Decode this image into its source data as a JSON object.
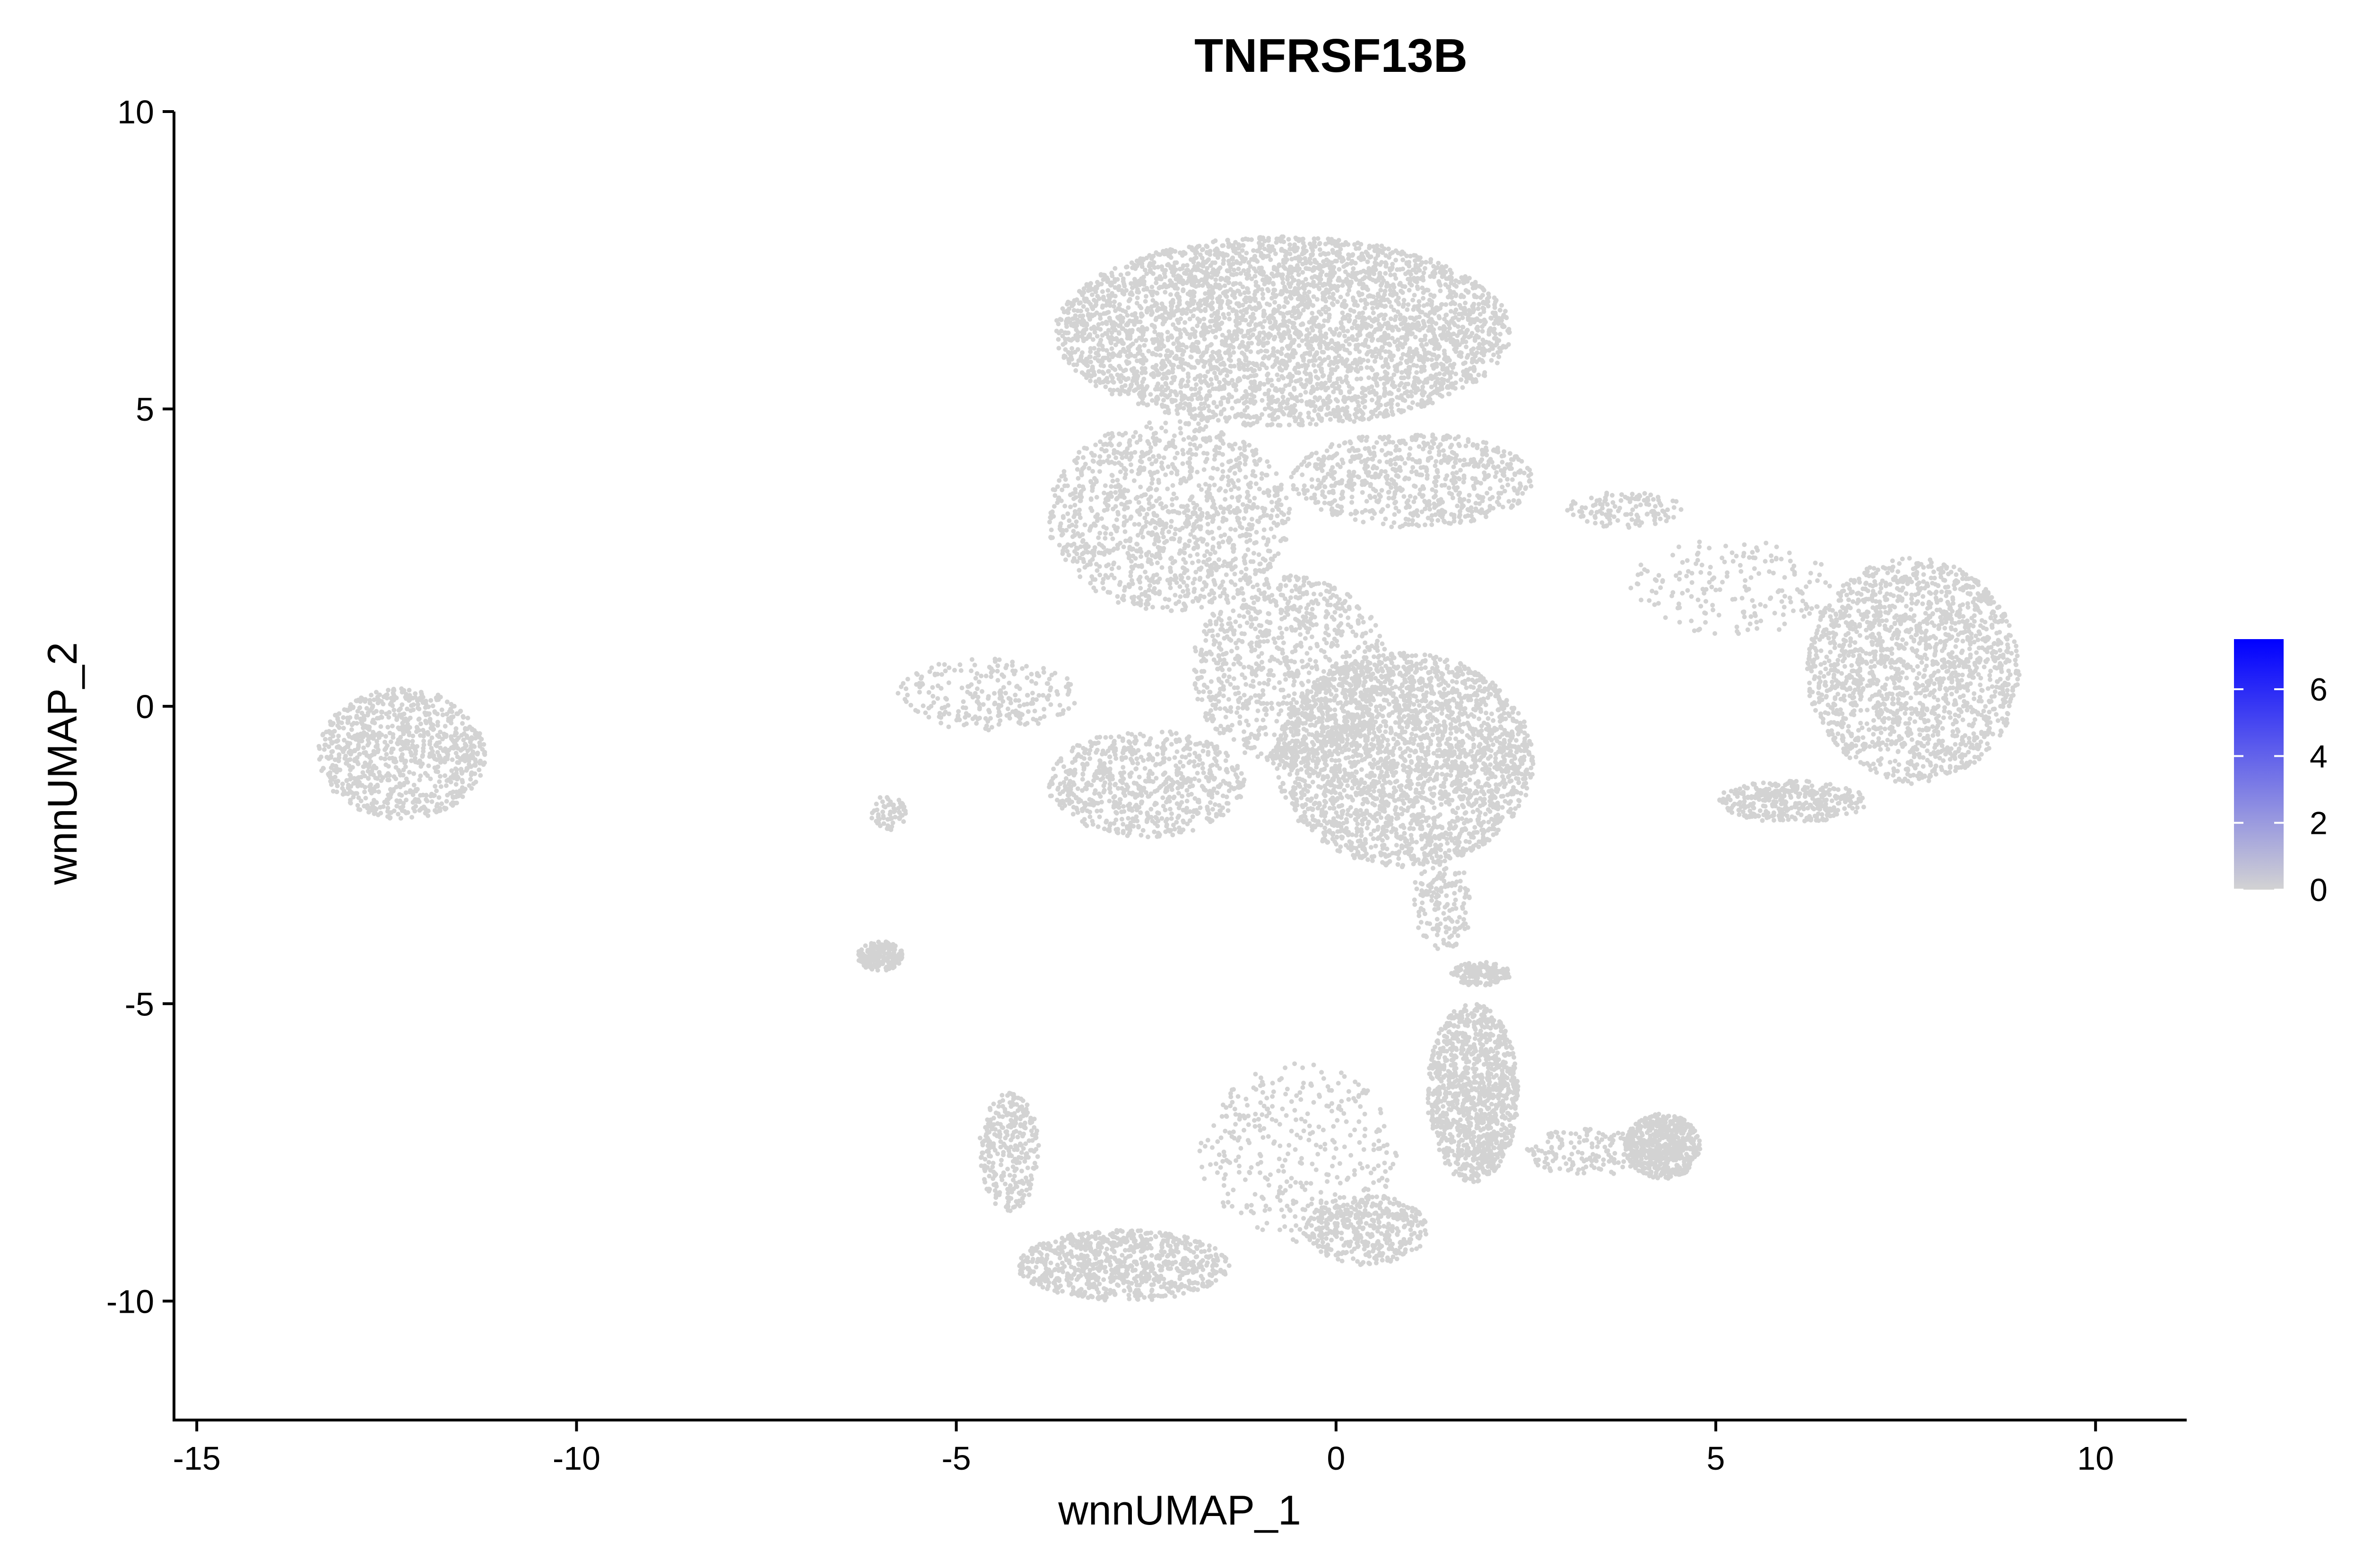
{
  "chart_data": {
    "type": "scatter",
    "title": "TNFRSF13B",
    "xlabel": "wnnUMAP_1",
    "ylabel": "wnnUMAP_2",
    "xlim": [
      -15.3,
      11.2
    ],
    "ylim": [
      -12,
      10
    ],
    "xticks": [
      -15,
      -10,
      -5,
      0,
      5,
      10
    ],
    "yticks": [
      -10,
      -5,
      0,
      5,
      10
    ],
    "xtick_labels": [
      "-15",
      "-10",
      "-5",
      "0",
      "5",
      "10"
    ],
    "ytick_labels": [
      "-10",
      "-5",
      "0",
      "5",
      "10"
    ],
    "grid": false,
    "legend_position": "right",
    "point_color": "#d3d3d3",
    "colorbar": {
      "low_color": "#d3d3d3",
      "high_color": "#0000ff",
      "min": 0,
      "max": 7.5,
      "ticks": [
        0,
        2,
        4,
        6
      ],
      "tick_labels": [
        "0",
        "2",
        "4",
        "6"
      ]
    },
    "clusters": [
      {
        "cx": -0.7,
        "cy": 6.3,
        "rx": 3.0,
        "ry": 1.6,
        "n": 3800
      },
      {
        "cx": -2.2,
        "cy": 3.2,
        "rx": 1.6,
        "ry": 1.6,
        "n": 1200
      },
      {
        "cx": 1.0,
        "cy": 3.8,
        "rx": 1.6,
        "ry": 0.8,
        "n": 700
      },
      {
        "cx": 0.9,
        "cy": -0.9,
        "rx": 1.7,
        "ry": 1.8,
        "n": 2600
      },
      {
        "cx": -0.6,
        "cy": 0.6,
        "rx": 1.3,
        "ry": 1.6,
        "n": 900
      },
      {
        "cx": -2.5,
        "cy": -1.3,
        "rx": 1.3,
        "ry": 0.9,
        "n": 700
      },
      {
        "cx": -4.6,
        "cy": 0.2,
        "rx": 1.2,
        "ry": 0.6,
        "n": 250
      },
      {
        "cx": 7.6,
        "cy": 0.6,
        "rx": 1.4,
        "ry": 1.9,
        "n": 1700
      },
      {
        "cx": 6.0,
        "cy": -1.6,
        "rx": 1.0,
        "ry": 0.35,
        "n": 350
      },
      {
        "cx": 5.2,
        "cy": 2.0,
        "rx": 1.4,
        "ry": 0.8,
        "n": 180
      },
      {
        "cx": -12.3,
        "cy": -0.8,
        "rx": 1.1,
        "ry": 1.1,
        "n": 900
      },
      {
        "cx": -6.0,
        "cy": -4.2,
        "rx": 0.3,
        "ry": 0.25,
        "n": 200
      },
      {
        "cx": -5.9,
        "cy": -1.8,
        "rx": 0.25,
        "ry": 0.3,
        "n": 60
      },
      {
        "cx": -4.3,
        "cy": -7.5,
        "rx": 0.4,
        "ry": 1.0,
        "n": 300
      },
      {
        "cx": -2.8,
        "cy": -9.4,
        "rx": 1.4,
        "ry": 0.6,
        "n": 800
      },
      {
        "cx": 1.8,
        "cy": -6.5,
        "rx": 0.6,
        "ry": 1.5,
        "n": 1100
      },
      {
        "cx": 0.4,
        "cy": -8.8,
        "rx": 0.8,
        "ry": 0.6,
        "n": 400
      },
      {
        "cx": -0.5,
        "cy": -7.5,
        "rx": 1.3,
        "ry": 1.5,
        "n": 350
      },
      {
        "cx": 4.3,
        "cy": -7.4,
        "rx": 0.5,
        "ry": 0.55,
        "n": 550
      },
      {
        "cx": 3.3,
        "cy": -7.5,
        "rx": 0.8,
        "ry": 0.4,
        "n": 150
      },
      {
        "cx": 1.9,
        "cy": -4.5,
        "rx": 0.4,
        "ry": 0.2,
        "n": 150
      },
      {
        "cx": 1.4,
        "cy": -3.3,
        "rx": 0.4,
        "ry": 0.8,
        "n": 150
      },
      {
        "cx": 3.8,
        "cy": 3.3,
        "rx": 0.8,
        "ry": 0.3,
        "n": 120
      }
    ]
  }
}
